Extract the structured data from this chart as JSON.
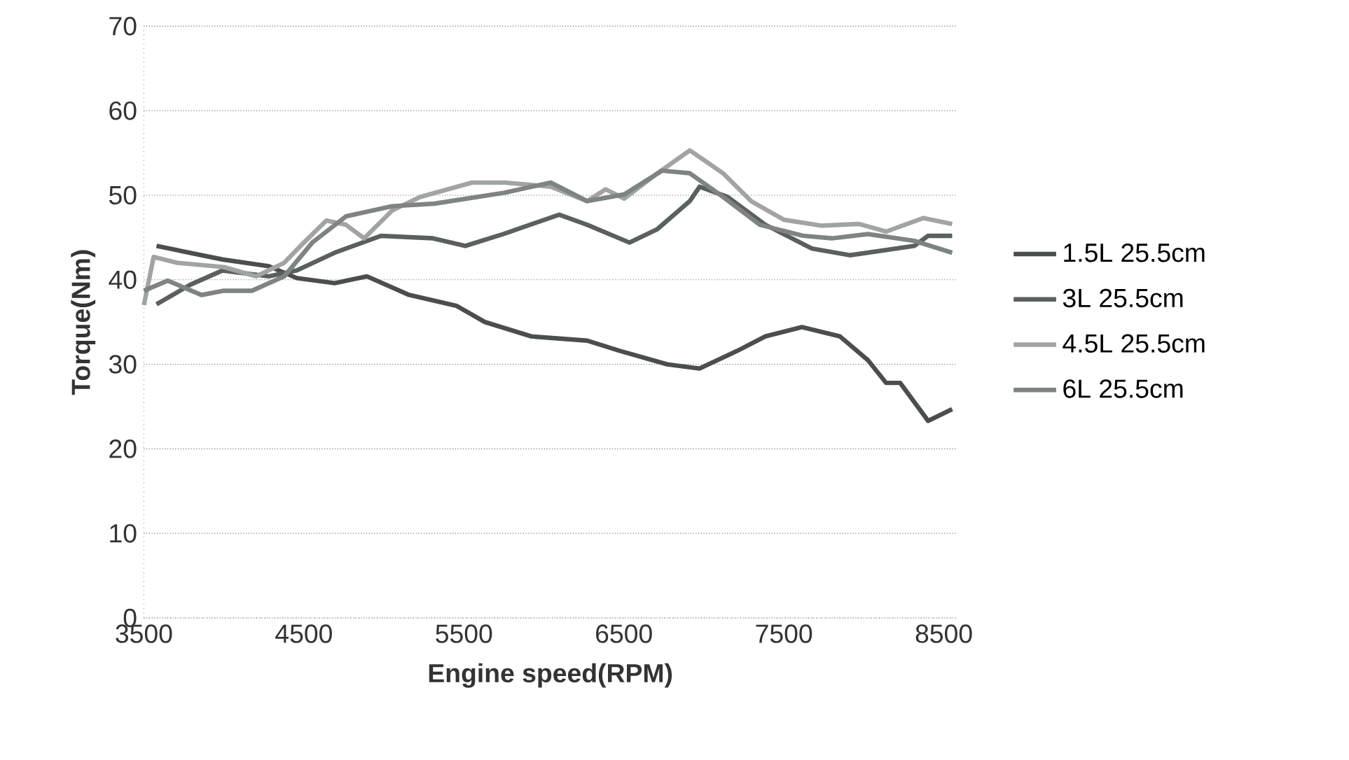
{
  "chart_data": {
    "type": "line",
    "xlabel": "Engine speed(RPM)",
    "ylabel": "Torque(Nm)",
    "xlim": [
      3500,
      8580
    ],
    "xticks": [
      3500,
      4500,
      5500,
      6500,
      7500,
      8500
    ],
    "ylim": [
      0,
      70
    ],
    "yticks": [
      0,
      10,
      20,
      30,
      40,
      50,
      60,
      70
    ],
    "grid": "y",
    "legend": "right",
    "marker": "none",
    "line_style": "solid",
    "series": [
      {
        "name": "1.5L 25.5cm",
        "color": "#4a4f4d",
        "x": [
          3579,
          3991,
          4281,
          4456,
          4693,
          4894,
          5158,
          5456,
          5631,
          5921,
          6271,
          6473,
          6771,
          6973,
          7210,
          7385,
          7613,
          7850,
          8025,
          8139,
          8227,
          8402,
          8552
        ],
        "values": [
          44.0,
          42.4,
          41.6,
          40.2,
          39.6,
          40.4,
          38.2,
          36.9,
          35.0,
          33.3,
          32.8,
          31.6,
          30.0,
          29.5,
          31.6,
          33.3,
          34.4,
          33.3,
          30.5,
          27.8,
          27.8,
          23.3,
          24.7
        ]
      },
      {
        "name": "3L 25.5cm",
        "color": "#5a605e",
        "x": [
          3579,
          3789,
          3991,
          4281,
          4456,
          4693,
          4982,
          5307,
          5509,
          5746,
          6096,
          6271,
          6535,
          6710,
          6912,
          6973,
          7148,
          7385,
          7675,
          7912,
          8315,
          8402,
          8552
        ],
        "values": [
          37.1,
          39.4,
          41.1,
          40.4,
          41.1,
          43.2,
          45.2,
          44.9,
          44.0,
          45.4,
          47.7,
          46.5,
          44.4,
          46.0,
          49.3,
          51.0,
          49.8,
          46.5,
          43.7,
          42.9,
          44.0,
          45.2,
          45.2
        ]
      },
      {
        "name": "4.5L 25.5cm",
        "color": "#a0a4a2",
        "x": [
          3500,
          3561,
          3710,
          4000,
          4202,
          4377,
          4500,
          4640,
          4763,
          4877,
          5052,
          5228,
          5552,
          5754,
          6043,
          6271,
          6386,
          6503,
          6710,
          6912,
          7120,
          7296,
          7500,
          7733,
          7970,
          8139,
          8373,
          8552
        ],
        "values": [
          37.0,
          42.7,
          42.0,
          41.5,
          40.4,
          42.0,
          44.4,
          47.0,
          46.5,
          44.9,
          48.2,
          49.8,
          51.5,
          51.5,
          51.0,
          49.3,
          50.7,
          49.6,
          52.6,
          55.3,
          52.6,
          49.3,
          47.1,
          46.4,
          46.6,
          45.7,
          47.3,
          46.6
        ]
      },
      {
        "name": "6L 25.5cm",
        "color": "#7e8482",
        "x": [
          3500,
          3649,
          3860,
          4000,
          4175,
          4377,
          4553,
          4763,
          5052,
          5316,
          5754,
          6043,
          6271,
          6503,
          6738,
          6912,
          7120,
          7350,
          7620,
          7800,
          8025,
          8315,
          8552
        ],
        "values": [
          38.7,
          39.9,
          38.2,
          38.7,
          38.7,
          40.4,
          44.4,
          47.5,
          48.7,
          49.0,
          50.3,
          51.5,
          49.3,
          50.1,
          52.9,
          52.6,
          49.8,
          46.5,
          45.2,
          44.9,
          45.4,
          44.6,
          43.2
        ]
      }
    ]
  }
}
